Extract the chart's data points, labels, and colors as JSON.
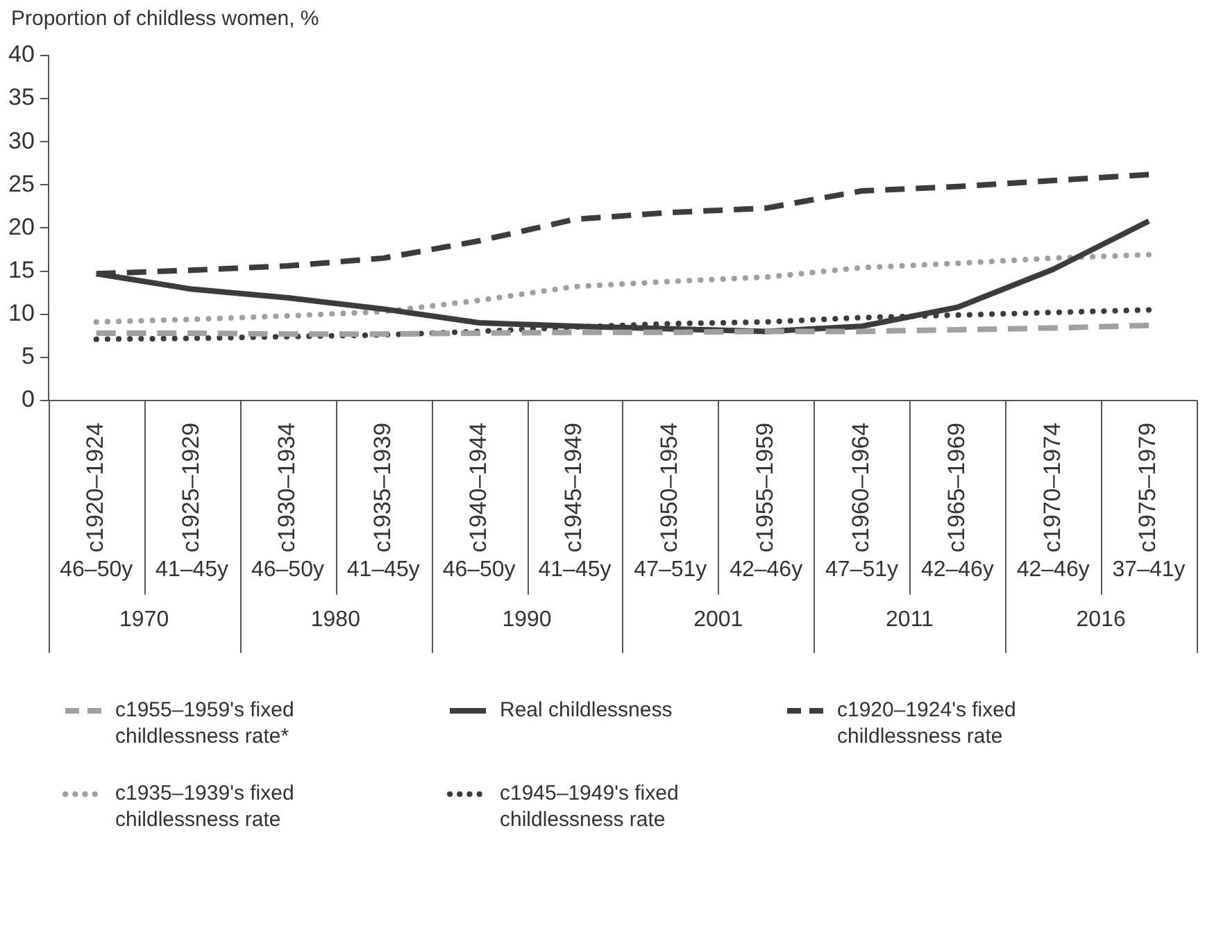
{
  "chart_data": {
    "type": "line",
    "ylabel": "Proportion of childless women, %",
    "categories": [
      "c1920–1924",
      "c1925–1929",
      "c1930–1934",
      "c1935–1939",
      "c1940–1944",
      "c1945–1949",
      "c1950–1954",
      "c1955–1959",
      "c1960–1964",
      "c1965–1969",
      "c1970–1974",
      "c1975–1979"
    ],
    "series": [
      {
        "name": "c1955–1959's fixed childlessness rate*",
        "color": "#a0a0a0",
        "line_style": "dashed",
        "values": [
          7.8,
          7.8,
          7.7,
          7.7,
          7.8,
          7.9,
          7.9,
          8.0,
          8.0,
          8.2,
          8.4,
          8.7
        ]
      },
      {
        "name": "Real childlessness",
        "color": "#3c3c3c",
        "line_style": "solid",
        "values": [
          14.7,
          12.9,
          11.9,
          10.6,
          9.0,
          8.6,
          8.3,
          8.0,
          8.6,
          10.8,
          15.2,
          20.8
        ]
      },
      {
        "name": "c1920–1924's fixed childlessness rate",
        "color": "#3c3c3c",
        "line_style": "dashed",
        "values": [
          14.7,
          15.1,
          15.6,
          16.5,
          18.5,
          21.0,
          21.8,
          22.3,
          24.3,
          24.8,
          25.5,
          26.2
        ]
      },
      {
        "name": "c1935–1939's fixed childlessness rate",
        "color": "#a0a0a0",
        "line_style": "dotted",
        "values": [
          9.1,
          9.4,
          9.8,
          10.3,
          11.6,
          13.2,
          13.8,
          14.3,
          15.4,
          15.9,
          16.5,
          16.9
        ]
      },
      {
        "name": "c1945–1949's fixed childlessness rate",
        "color": "#3c3c3c",
        "line_style": "dotted",
        "values": [
          7.1,
          7.2,
          7.4,
          7.6,
          8.0,
          8.5,
          8.9,
          9.1,
          9.6,
          9.9,
          10.2,
          10.5
        ]
      }
    ],
    "ylim": [
      0,
      40
    ],
    "yticks": [
      0,
      5,
      10,
      15,
      20,
      25,
      30,
      35,
      40
    ],
    "legend": "bottom",
    "marker": "none",
    "annotations": [
      "46–50y",
      "41–45y",
      "46–50y",
      "41–45y",
      "46–50y",
      "41–45y",
      "47–51y",
      "42–46y",
      "47–51y",
      "42–46y",
      "42–46y",
      "37–41y",
      "1970",
      "1980",
      "1990",
      "2001",
      "2011",
      "2016"
    ]
  }
}
